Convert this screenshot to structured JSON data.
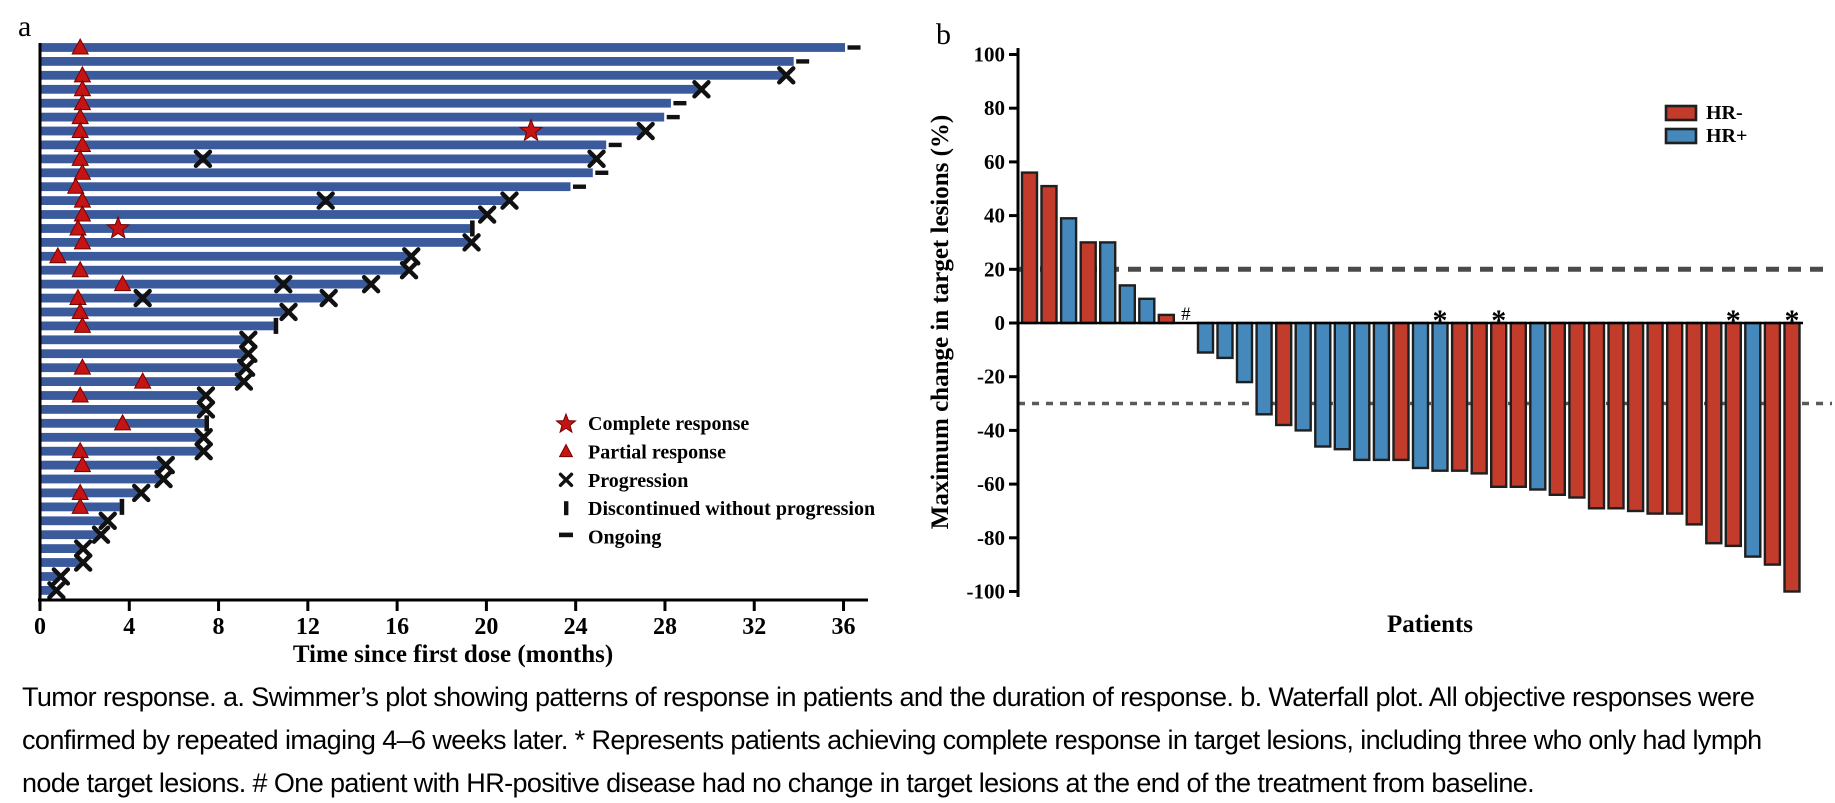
{
  "caption": "Tumor response. a. Swimmer’s plot showing patterns of response in patients and the duration of response. b. Waterfall plot. All objective responses were\nconfirmed by repeated imaging 4–6 weeks later. * Represents patients achieving complete response in target lesions, including three who only had lymph\nnode target lesions. # One patient with HR-positive disease had no change in target lesions at the end of the treatment from baseline.",
  "chart_data": [
    {
      "id": "a",
      "panel_label": "a",
      "type": "bar",
      "orientation": "horizontal",
      "xlabel": "Time since first dose (months)",
      "xlim": [
        0,
        37
      ],
      "xticks": [
        0,
        4,
        8,
        12,
        16,
        20,
        24,
        28,
        32,
        36
      ],
      "grid": false,
      "bar_color": "#3A5A9C",
      "marker_red": "#C41414",
      "marker_red_edge": "#7A0000",
      "marker_black": "#111111",
      "legend": [
        {
          "marker": "star",
          "label": "Complete response"
        },
        {
          "marker": "triangle",
          "label": "Partial response"
        },
        {
          "marker": "x",
          "label": "Progression"
        },
        {
          "marker": "bar",
          "label": "Discontinued without progression"
        },
        {
          "marker": "dash",
          "label": "Ongoing"
        }
      ],
      "bars": [
        {
          "duration": 36.0,
          "triangle": 1.8,
          "end": "ongoing"
        },
        {
          "duration": 33.7,
          "end": "ongoing"
        },
        {
          "duration": 33.3,
          "triangle": 1.9,
          "end": "progression"
        },
        {
          "duration": 29.5,
          "triangle": 1.9,
          "end": "progression"
        },
        {
          "duration": 28.2,
          "triangle": 1.9,
          "end": "ongoing"
        },
        {
          "duration": 27.9,
          "triangle": 1.8,
          "end": "ongoing"
        },
        {
          "duration": 27.0,
          "triangle": 1.8,
          "star": 22.0,
          "end": "progression"
        },
        {
          "duration": 25.3,
          "triangle": 1.9,
          "end": "ongoing"
        },
        {
          "duration": 24.8,
          "triangle": 1.8,
          "x_marks": [
            7.3
          ],
          "end": "progression"
        },
        {
          "duration": 24.7,
          "triangle": 1.9,
          "end": "ongoing"
        },
        {
          "duration": 23.7,
          "triangle": 1.6,
          "end": "ongoing"
        },
        {
          "duration": 20.9,
          "triangle": 1.9,
          "x_marks": [
            12.8
          ],
          "end": "progression"
        },
        {
          "duration": 19.9,
          "triangle": 1.9,
          "end": "progression"
        },
        {
          "duration": 19.2,
          "triangle": 1.7,
          "star": 3.5,
          "end": "discontinued"
        },
        {
          "duration": 19.2,
          "triangle": 1.9,
          "end": "progression"
        },
        {
          "duration": 16.5,
          "triangle": 0.8,
          "end": "progression"
        },
        {
          "duration": 16.4,
          "triangle": 1.8,
          "end": "progression"
        },
        {
          "duration": 14.7,
          "triangle": 3.7,
          "x_marks": [
            10.9
          ],
          "end": "progression"
        },
        {
          "duration": 12.8,
          "triangle": 1.7,
          "x_marks": [
            4.6
          ],
          "end": "progression"
        },
        {
          "duration": 11.0,
          "triangle": 1.8,
          "end": "progression"
        },
        {
          "duration": 10.4,
          "triangle": 1.9,
          "end": "discontinued"
        },
        {
          "duration": 9.2,
          "end": "progression"
        },
        {
          "duration": 9.2,
          "end": "progression"
        },
        {
          "duration": 9.1,
          "triangle": 1.9,
          "end": "progression"
        },
        {
          "duration": 9.0,
          "triangle": 4.6,
          "end": "progression"
        },
        {
          "duration": 7.3,
          "triangle": 1.8,
          "end": "progression"
        },
        {
          "duration": 7.3,
          "end": "progression"
        },
        {
          "duration": 7.3,
          "triangle": 3.7,
          "end": "discontinued"
        },
        {
          "duration": 7.2,
          "end": "progression"
        },
        {
          "duration": 7.2,
          "triangle": 1.8,
          "end": "progression"
        },
        {
          "duration": 5.5,
          "triangle": 1.9,
          "end": "progression"
        },
        {
          "duration": 5.4,
          "end": "progression"
        },
        {
          "duration": 4.4,
          "triangle": 1.8,
          "end": "progression"
        },
        {
          "duration": 3.5,
          "triangle": 1.8,
          "end": "discontinued"
        },
        {
          "duration": 2.9,
          "end": "progression"
        },
        {
          "duration": 2.6,
          "end": "progression"
        },
        {
          "duration": 1.8,
          "end": "progression"
        },
        {
          "duration": 1.8,
          "end": "progression"
        },
        {
          "duration": 0.8,
          "end": "progression"
        },
        {
          "duration": 0.6,
          "end": "progression"
        }
      ]
    },
    {
      "id": "b",
      "panel_label": "b",
      "type": "bar",
      "orientation": "vertical",
      "ylabel": "Maximum change in target lesions (%)",
      "xlabel": "Patients",
      "ylim": [
        -100,
        100
      ],
      "yticks": [
        100,
        80,
        60,
        40,
        20,
        0,
        -20,
        -40,
        -60,
        -80,
        -100
      ],
      "reference_lines": [
        20,
        -30
      ],
      "bar_edge_color": "#1F1F1F",
      "legend": [
        {
          "label": "HR-",
          "color": "#C23B2B"
        },
        {
          "label": "HR+",
          "color": "#4589BC"
        }
      ],
      "bars": [
        {
          "value": 56,
          "group": "HR-"
        },
        {
          "value": 51,
          "group": "HR-"
        },
        {
          "value": 39,
          "group": "HR+"
        },
        {
          "value": 30,
          "group": "HR-"
        },
        {
          "value": 30,
          "group": "HR+"
        },
        {
          "value": 14,
          "group": "HR+"
        },
        {
          "value": 9,
          "group": "HR+"
        },
        {
          "value": 3,
          "group": "HR-"
        },
        {
          "value": 0,
          "group": "HR+",
          "note": "#"
        },
        {
          "value": -11,
          "group": "HR+"
        },
        {
          "value": -13,
          "group": "HR+"
        },
        {
          "value": -22,
          "group": "HR+"
        },
        {
          "value": -34,
          "group": "HR+"
        },
        {
          "value": -38,
          "group": "HR-"
        },
        {
          "value": -40,
          "group": "HR+"
        },
        {
          "value": -46,
          "group": "HR+"
        },
        {
          "value": -47,
          "group": "HR+"
        },
        {
          "value": -51,
          "group": "HR+"
        },
        {
          "value": -51,
          "group": "HR+"
        },
        {
          "value": -51,
          "group": "HR-"
        },
        {
          "value": -54,
          "group": "HR+"
        },
        {
          "value": -55,
          "group": "HR+",
          "note": "*"
        },
        {
          "value": -55,
          "group": "HR-"
        },
        {
          "value": -56,
          "group": "HR-"
        },
        {
          "value": -61,
          "group": "HR-",
          "note": "*"
        },
        {
          "value": -61,
          "group": "HR-"
        },
        {
          "value": -62,
          "group": "HR+"
        },
        {
          "value": -64,
          "group": "HR-"
        },
        {
          "value": -65,
          "group": "HR-"
        },
        {
          "value": -69,
          "group": "HR-"
        },
        {
          "value": -69,
          "group": "HR-"
        },
        {
          "value": -70,
          "group": "HR-"
        },
        {
          "value": -71,
          "group": "HR-"
        },
        {
          "value": -71,
          "group": "HR-"
        },
        {
          "value": -75,
          "group": "HR-"
        },
        {
          "value": -82,
          "group": "HR-"
        },
        {
          "value": -83,
          "group": "HR-",
          "note": "*"
        },
        {
          "value": -87,
          "group": "HR+"
        },
        {
          "value": -90,
          "group": "HR-"
        },
        {
          "value": -100,
          "group": "HR-",
          "note": "*"
        }
      ]
    }
  ]
}
